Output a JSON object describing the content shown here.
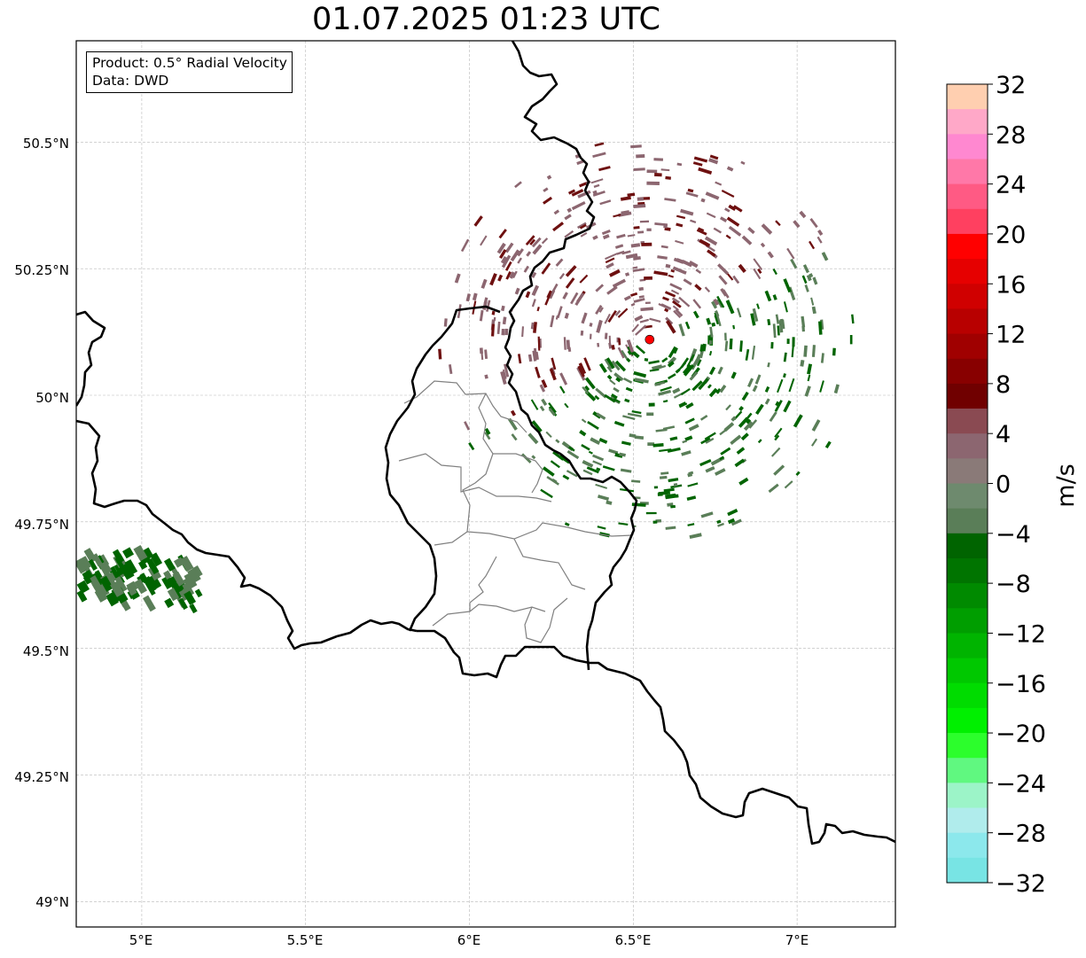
{
  "map": {
    "title": "01.07.2025 01:23 UTC",
    "info": {
      "line1": "Product: 0.5° Radial Velocity",
      "line2": "Data: DWD"
    },
    "lon_ticks": [
      "5°E",
      "5.5°E",
      "6°E",
      "6.5°E",
      "7°E"
    ],
    "lat_ticks": [
      "50.5°N",
      "50.25°N",
      "50°N",
      "49.75°N",
      "49.5°N",
      "49.25°N",
      "49°N"
    ],
    "extent": {
      "lon_min": 4.8,
      "lon_max": 7.3,
      "lat_min": 48.95,
      "lat_max": 50.7
    },
    "radar_site": {
      "lon": 6.55,
      "lat": 50.11,
      "color": "#ff0000"
    },
    "colorbar": {
      "label": "m/s",
      "ticks": [
        "32",
        "28",
        "24",
        "20",
        "16",
        "12",
        "8",
        "4",
        "0",
        "−4",
        "−8",
        "−12",
        "−16",
        "−20",
        "−24",
        "−28",
        "−32"
      ],
      "min": -32,
      "max": 32,
      "colors_top_to_bottom": [
        "#ffcfb0",
        "#ffa8c8",
        "#ff88d0",
        "#ff78a8",
        "#ff5a84",
        "#ff4060",
        "#ff0000",
        "#e60000",
        "#d00000",
        "#b80000",
        "#a00000",
        "#880000",
        "#700000",
        "#8a4a52",
        "#8c6670",
        "#8a7a78",
        "#6e8a6e",
        "#5a7e58",
        "#006400",
        "#007400",
        "#008a00",
        "#009e00",
        "#00b400",
        "#00c800",
        "#00dc00",
        "#00f000",
        "#2cfe2c",
        "#60f880",
        "#9cf4c8",
        "#b0ecec",
        "#8ce8ec",
        "#78e4e4"
      ]
    },
    "palette": {
      "inbound_dark": "#006400",
      "inbound_med": "#5a7e58",
      "outbound_dark": "#6e1010",
      "outbound_med": "#8c6670",
      "border": "#000000",
      "admin": "#808080",
      "grid": "#b8b8b8"
    }
  }
}
